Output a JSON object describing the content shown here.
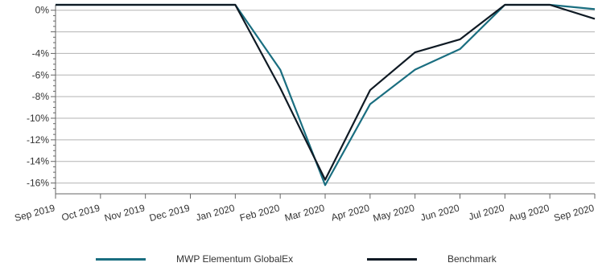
{
  "chart_data": {
    "type": "line",
    "title": "",
    "xlabel": "",
    "ylabel": "",
    "categories": [
      "Sep 2019",
      "Oct 2019",
      "Nov 2019",
      "Dec 2019",
      "Jan 2020",
      "Feb 2020",
      "Mar 2020",
      "Apr 2020",
      "May 2020",
      "Jun 2020",
      "Jul 2020",
      "Aug 2020",
      "Sep 2020"
    ],
    "ylim": [
      -17,
      0.5
    ],
    "yticks": [
      0,
      -4,
      -6,
      -8,
      -10,
      -12,
      -14,
      -16
    ],
    "ytick_labels": [
      "0%",
      "-4%",
      "-6%",
      "-8%",
      "-10%",
      "-12%",
      "-14%",
      "-16%"
    ],
    "grid": true,
    "legend_position": "bottom",
    "series": [
      {
        "name": "MWP Elementum GlobalEx",
        "color": "#1a6e80",
        "values": [
          0.5,
          0.5,
          0.5,
          0.5,
          0.5,
          -5.5,
          -16.2,
          -8.7,
          -5.5,
          -3.6,
          0.5,
          0.5,
          0.1
        ]
      },
      {
        "name": "Benchmark",
        "color": "#0f1a24",
        "values": [
          0.5,
          0.5,
          0.5,
          0.5,
          0.5,
          -7.2,
          -15.7,
          -7.4,
          -3.9,
          -2.7,
          0.5,
          0.5,
          -0.8
        ]
      }
    ]
  }
}
